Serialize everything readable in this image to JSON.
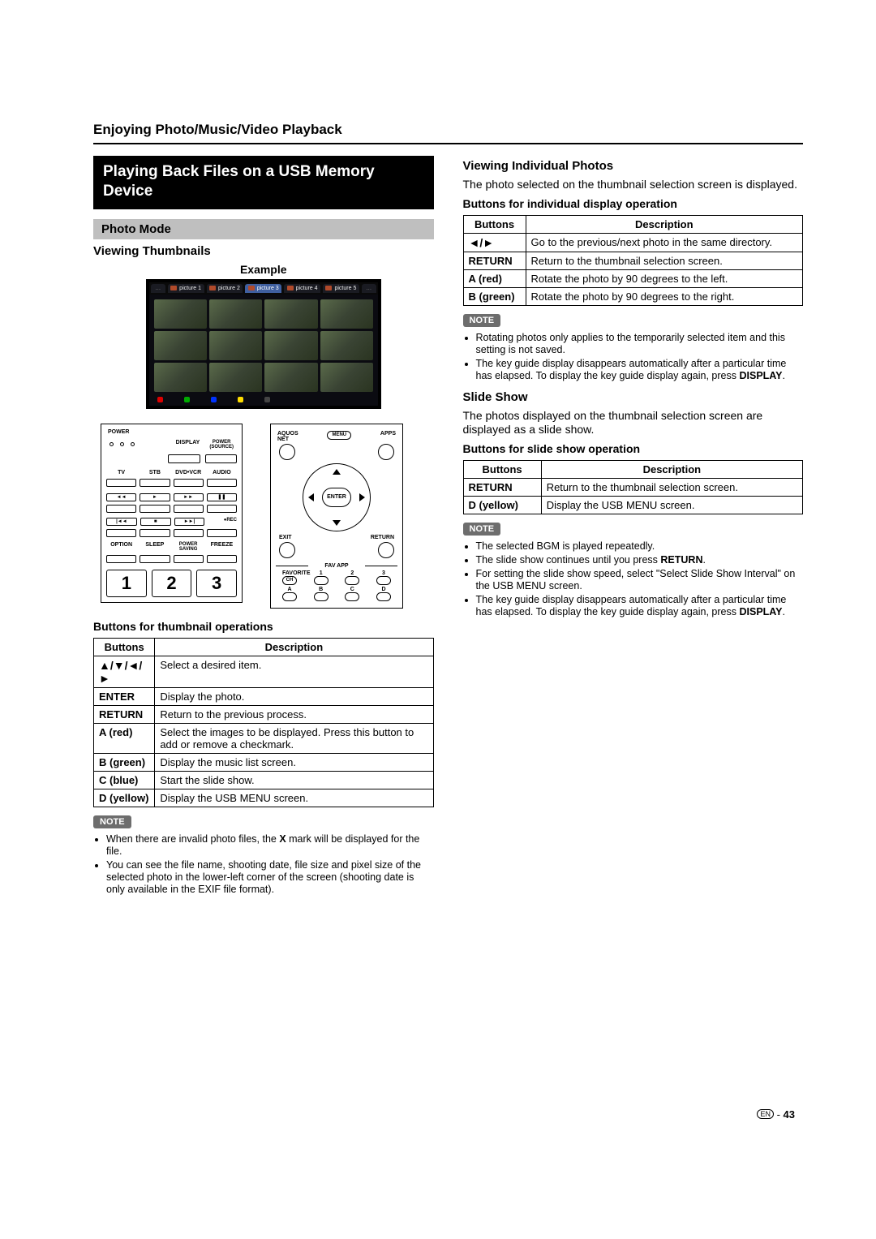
{
  "chapter_title": "Enjoying Photo/Music/Video Playback",
  "left": {
    "banner": "Playing Back Files on a USB Memory Device",
    "photo_mode": "Photo Mode",
    "viewing_thumbnails": "Viewing Thumbnails",
    "example": "Example",
    "thumb_tabs": [
      "…",
      "picture 1",
      "picture 2",
      "picture 3",
      "picture 4",
      "picture 5",
      "…"
    ],
    "remote": {
      "power": "POWER",
      "display": "DISPLAY",
      "power_source": "POWER\n(SOURCE)",
      "tv": "TV",
      "stb": "STB",
      "dvdvcr": "DVD•VCR",
      "audio": "AUDIO",
      "rec": "REC",
      "option": "OPTION",
      "sleep": "SLEEP",
      "powersaving": "POWER\nSAVING",
      "freeze": "FREEZE",
      "nums": [
        "1",
        "2",
        "3"
      ],
      "aquos_net": "AQUOS\nNET",
      "menu": "MENU",
      "apps": "APPS",
      "enter": "ENTER",
      "exit": "EXIT",
      "return": "RETURN",
      "fav_app": "FAV APP",
      "favorite": "FAVORITE",
      "ch": "CH",
      "favnums": [
        "1",
        "2",
        "3"
      ],
      "abcd": [
        "A",
        "B",
        "C",
        "D"
      ]
    },
    "table_title": "Buttons for thumbnail operations",
    "table_headers": [
      "Buttons",
      "Description"
    ],
    "table_rows": [
      [
        "▲/▼/◄/►",
        "Select a desired item."
      ],
      [
        "ENTER",
        "Display the photo."
      ],
      [
        "RETURN",
        "Return to the previous process."
      ],
      [
        "A (red)",
        "Select the images to be displayed. Press this button to add or remove a checkmark."
      ],
      [
        "B (green)",
        "Display the music list screen."
      ],
      [
        "C (blue)",
        "Start the slide show."
      ],
      [
        "D (yellow)",
        "Display the USB MENU screen."
      ]
    ],
    "note_label": "NOTE",
    "notes": [
      "When there are invalid photo files, the <b>X</b> mark will be displayed for the file.",
      "You can see the file name, shooting date, file size and pixel size of the selected photo in the lower-left corner of the screen (shooting date is only available in the EXIF file format)."
    ]
  },
  "right": {
    "viewing_individual": "Viewing Individual Photos",
    "vi_body": "The photo selected on the thumbnail selection screen is displayed.",
    "table1_title": "Buttons for individual display operation",
    "table1_headers": [
      "Buttons",
      "Description"
    ],
    "table1_rows": [
      [
        "◄/►",
        "Go to the previous/next photo in the same directory."
      ],
      [
        "RETURN",
        "Return to the thumbnail selection screen."
      ],
      [
        "A (red)",
        "Rotate the photo by 90 degrees to the left."
      ],
      [
        "B (green)",
        "Rotate the photo by 90 degrees to the right."
      ]
    ],
    "note_label": "NOTE",
    "notes1": [
      "Rotating photos only applies to the temporarily selected item and this setting is not saved.",
      "The key guide display disappears automatically after a particular time has elapsed. To display the key guide display again, press <b>DISPLAY</b>."
    ],
    "slide_show": "Slide Show",
    "ss_body": "The photos displayed on the thumbnail selection screen are displayed as a slide show.",
    "table2_title": "Buttons for slide show operation",
    "table2_headers": [
      "Buttons",
      "Description"
    ],
    "table2_rows": [
      [
        "RETURN",
        "Return to the thumbnail selection screen."
      ],
      [
        "D (yellow)",
        "Display the USB MENU screen."
      ]
    ],
    "notes2": [
      "The selected BGM is played repeatedly.",
      "The slide show continues until you press <b>RETURN</b>.",
      "For setting the slide show speed, select \"Select Slide Show Interval\" on the USB MENU screen.",
      "The key guide display disappears automatically after a particular time has elapsed. To display the key guide display again, press <b>DISPLAY</b>."
    ]
  },
  "footer": {
    "en": "EN",
    "sep": " - ",
    "page": "43"
  },
  "colors": {
    "black": "#000000",
    "white": "#ffffff",
    "banner_gray": "#bfbfbf",
    "note_pill": "#6d6d6d",
    "tab_active": "#3f5f9f",
    "thumb_bg": "#0b0b11",
    "red": "#d00",
    "green": "#0a0",
    "blue": "#03f",
    "yellow": "#fd0"
  }
}
